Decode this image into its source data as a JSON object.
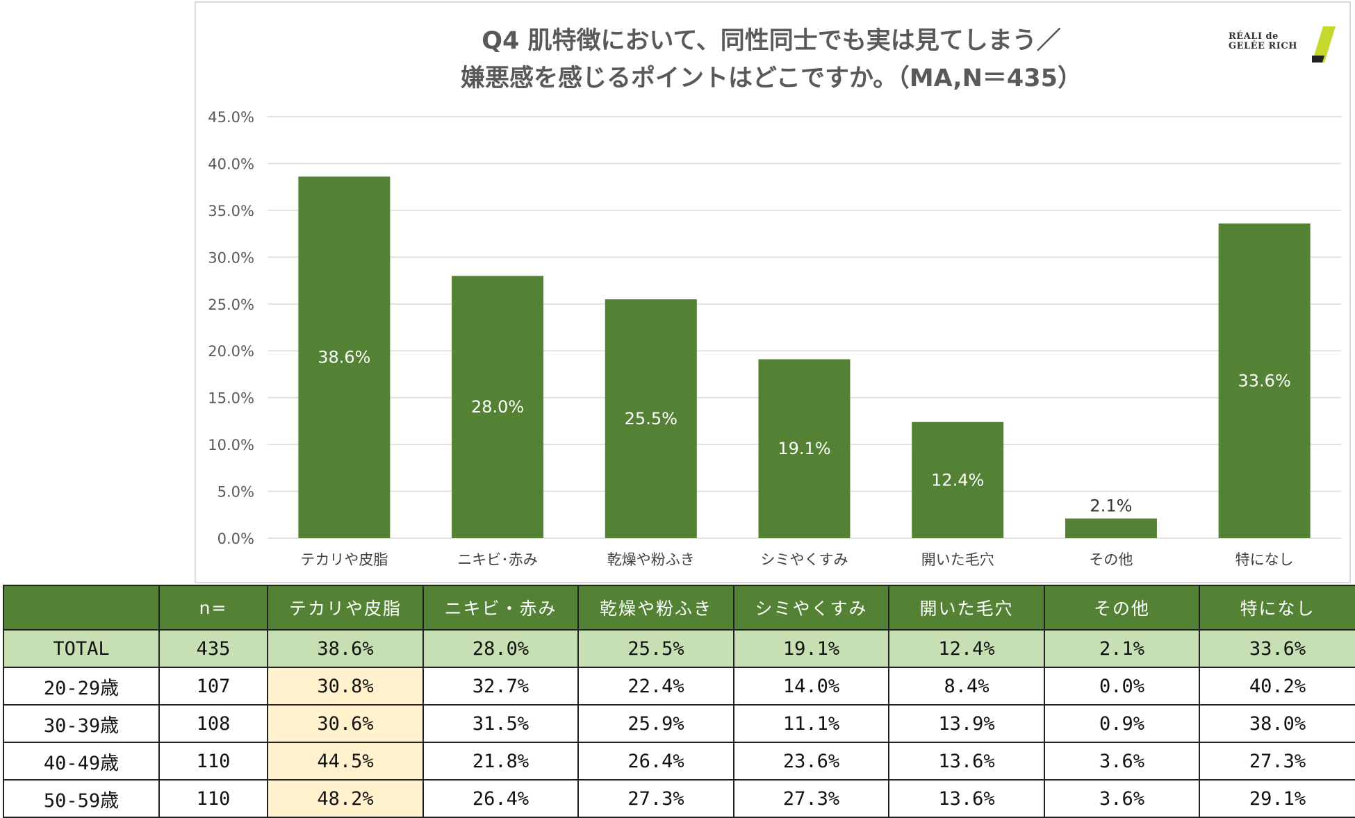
{
  "chart": {
    "title_line1": "Q4 肌特徴において、同性同士でも実は見てしまう／",
    "title_line2": "嫌悪感を感じるポイントはどこですか。（MA,N＝435）",
    "bar_color": "#548235",
    "grid_color": "#d9d9d9"
  },
  "logo": {
    "line1": "RÉALI de",
    "line2": "GELÉE RICH",
    "accent_color": "#c5d92d"
  },
  "chart_data": {
    "type": "bar",
    "title": "Q4 肌特徴において、同性同士でも実は見てしまう／嫌悪感を感じるポイントはどこですか。（MA,N＝435）",
    "categories": [
      "テカリや皮脂",
      "ニキビ･赤み",
      "乾燥や粉ふき",
      "シミやくすみ",
      "開いた毛穴",
      "その他",
      "特になし"
    ],
    "values": [
      38.6,
      28.0,
      25.5,
      19.1,
      12.4,
      2.1,
      33.6
    ],
    "labels": [
      "38.6%",
      "28.0%",
      "25.5%",
      "19.1%",
      "12.4%",
      "2.1%",
      "33.6%"
    ],
    "yticks": [
      "0.0%",
      "5.0%",
      "10.0%",
      "15.0%",
      "20.0%",
      "25.0%",
      "30.0%",
      "35.0%",
      "40.0%",
      "45.0%"
    ],
    "ylim": [
      0,
      45
    ],
    "xlabel": "",
    "ylabel": "",
    "grid": true
  },
  "table": {
    "headers": [
      "",
      "n=",
      "テカリや皮脂",
      "ニキビ・赤み",
      "乾燥や粉ふき",
      "シミやくすみ",
      "開いた毛穴",
      "その他",
      "特になし"
    ],
    "rows": [
      [
        "TOTAL",
        "435",
        "38.6%",
        "28.0%",
        "25.5%",
        "19.1%",
        "12.4%",
        "2.1%",
        "33.6%"
      ],
      [
        "20-29歳",
        "107",
        "30.8%",
        "32.7%",
        "22.4%",
        "14.0%",
        "8.4%",
        "0.0%",
        "40.2%"
      ],
      [
        "30-39歳",
        "108",
        "30.6%",
        "31.5%",
        "25.9%",
        "11.1%",
        "13.9%",
        "0.9%",
        "38.0%"
      ],
      [
        "40-49歳",
        "110",
        "44.5%",
        "21.8%",
        "26.4%",
        "23.6%",
        "13.6%",
        "3.6%",
        "27.3%"
      ],
      [
        "50-59歳",
        "110",
        "48.2%",
        "26.4%",
        "27.3%",
        "27.3%",
        "13.6%",
        "3.6%",
        "29.1%"
      ]
    ]
  }
}
